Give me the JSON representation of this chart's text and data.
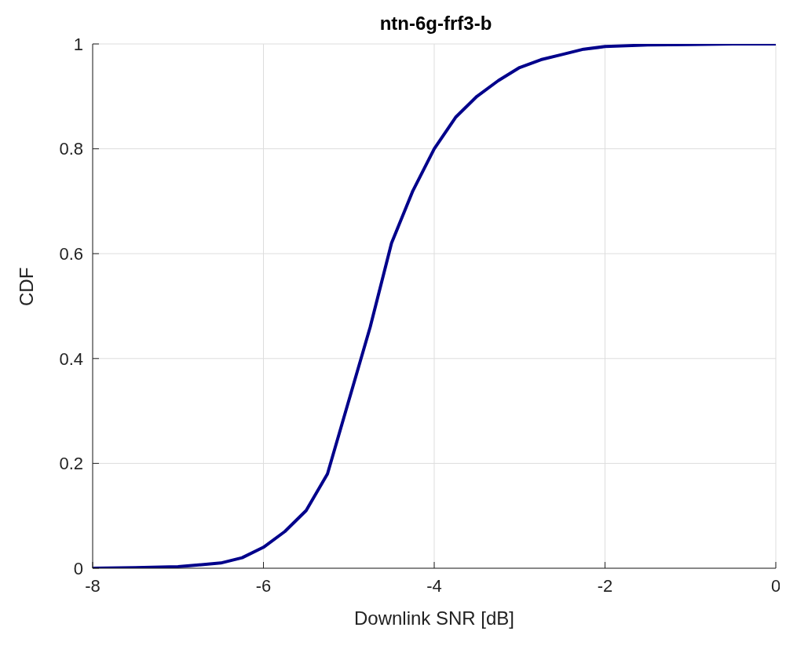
{
  "chart_data": {
    "type": "line",
    "title": "ntn-6g-frf3-b",
    "xlabel": "Downlink SNR [dB]",
    "ylabel": "CDF",
    "x": [
      -8,
      -7.5,
      -7,
      -6.5,
      -6.25,
      -6,
      -5.75,
      -5.5,
      -5.25,
      -5,
      -4.75,
      -4.5,
      -4.25,
      -4,
      -3.75,
      -3.5,
      -3.25,
      -3,
      -2.75,
      -2.5,
      -2.25,
      -2,
      -1.5,
      -1,
      -0.5,
      0
    ],
    "series": [
      {
        "color": "#00008b",
        "values": [
          0,
          0.001,
          0.003,
          0.01,
          0.02,
          0.04,
          0.07,
          0.11,
          0.18,
          0.32,
          0.46,
          0.62,
          0.72,
          0.8,
          0.86,
          0.9,
          0.93,
          0.955,
          0.97,
          0.98,
          0.99,
          0.995,
          0.998,
          0.999,
          1,
          1
        ]
      }
    ],
    "xlim": [
      -8,
      0
    ],
    "xticks": [
      -8,
      -6,
      -4,
      -2,
      0
    ],
    "ylim": [
      0,
      1
    ],
    "yticks": [
      0,
      0.2,
      0.4,
      0.6,
      0.8,
      1
    ],
    "grid": true,
    "marker": "none",
    "line_style": "solid",
    "legend": false
  }
}
